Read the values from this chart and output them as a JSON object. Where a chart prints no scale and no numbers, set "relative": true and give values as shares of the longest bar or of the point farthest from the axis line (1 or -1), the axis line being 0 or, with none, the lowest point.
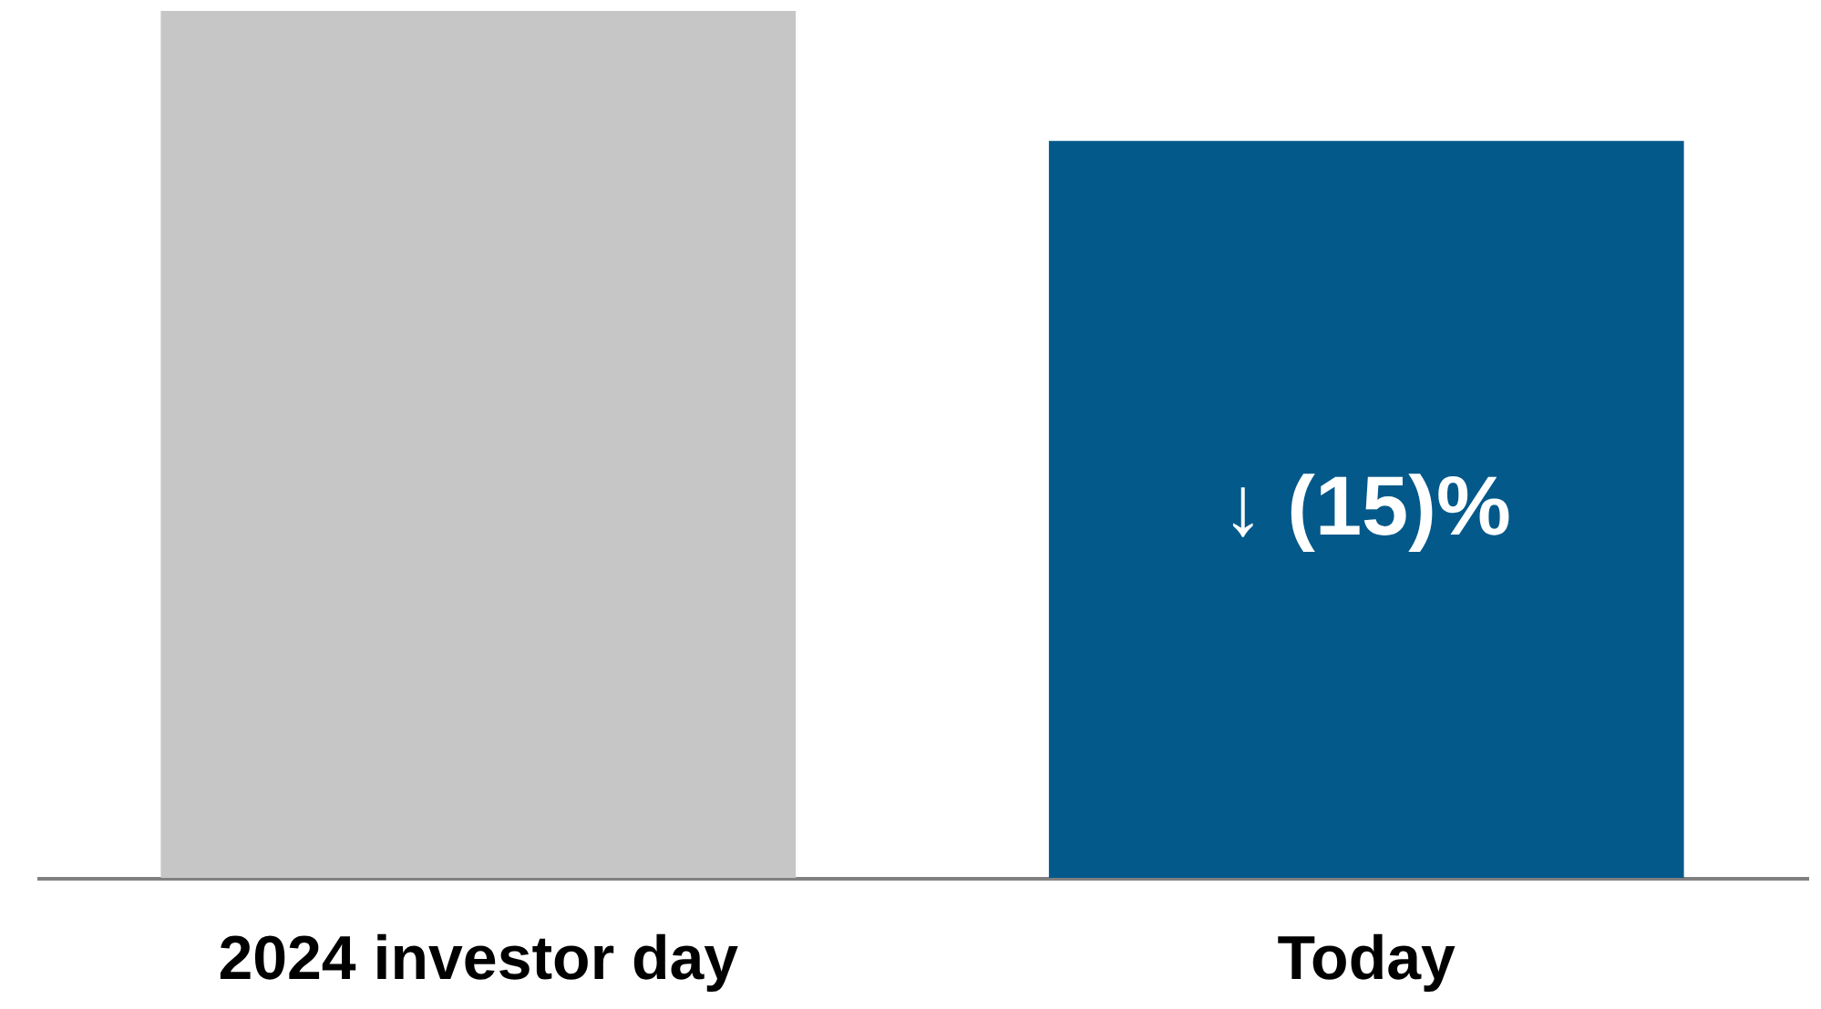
{
  "chart_data": {
    "type": "bar",
    "relative": true,
    "categories": [
      "2024 investor day",
      "Today"
    ],
    "values": [
      1,
      0.85
    ],
    "colors": [
      "#c6c6c6",
      "#03598a"
    ],
    "annotations": [
      "↓ (15)%"
    ]
  }
}
